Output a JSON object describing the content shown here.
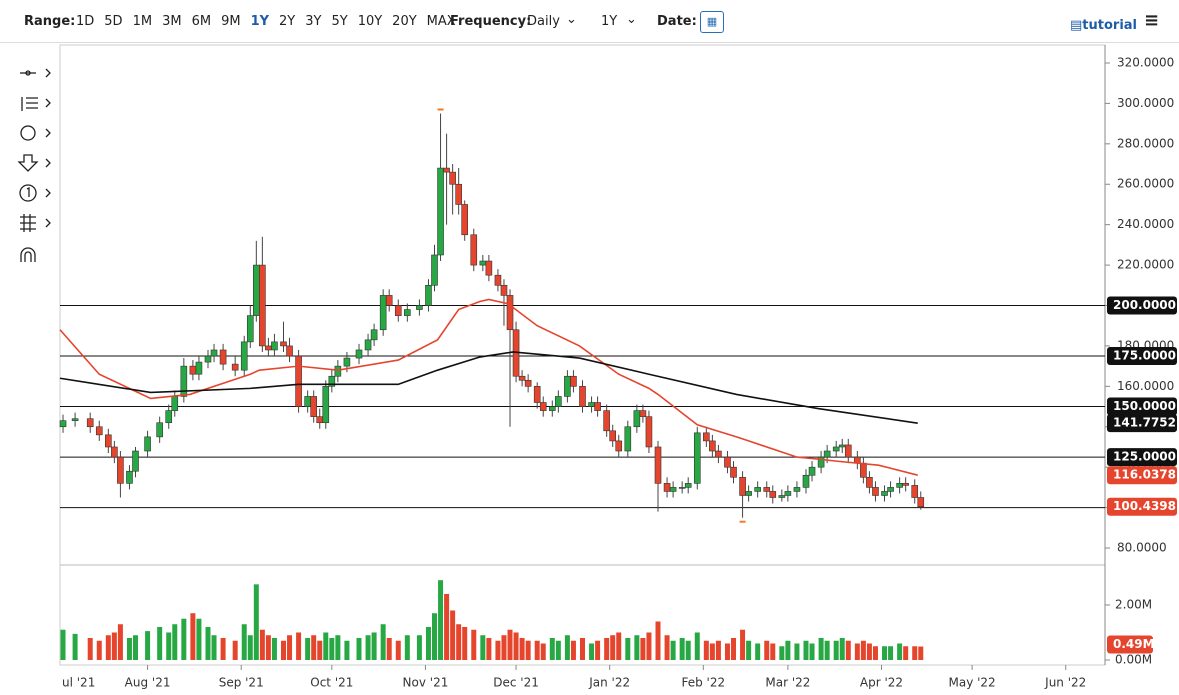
{
  "toolbar": {
    "range_label": "Range:",
    "ranges": [
      "1D",
      "5D",
      "1M",
      "3M",
      "6M",
      "9M",
      "1Y",
      "2Y",
      "3Y",
      "5Y",
      "10Y",
      "20Y",
      "MAX"
    ],
    "active_range": "1Y",
    "frequency_label": "Frequency:",
    "frequency": "Daily",
    "period": "1Y",
    "date_label": "Date:",
    "tutorial": "tutorial"
  },
  "chart_data": {
    "type": "candlestick",
    "xlim": [
      2,
      348
    ],
    "xticks": [
      {
        "value": 0,
        "label": "ul '21"
      },
      {
        "value": 31,
        "label": "Aug '21"
      },
      {
        "value": 62,
        "label": "Sep '21"
      },
      {
        "value": 92,
        "label": "Oct '21"
      },
      {
        "value": 123,
        "label": "Nov '21"
      },
      {
        "value": 153,
        "label": "Dec '21"
      },
      {
        "value": 184,
        "label": "Jan '22"
      },
      {
        "value": 215,
        "label": "Feb '22"
      },
      {
        "value": 243,
        "label": "Mar '22"
      },
      {
        "value": 274,
        "label": "Apr '22"
      },
      {
        "value": 304,
        "label": "May '22"
      },
      {
        "value": 335,
        "label": "Jun '22"
      }
    ],
    "ylim": [
      71.6,
      328.9
    ],
    "yticks": [
      {
        "value": 80,
        "label": "80.0000"
      },
      {
        "value": 100,
        "label": "100.0000"
      },
      {
        "value": 120,
        "label": "120.0000"
      },
      {
        "value": 140,
        "label": "140.0000"
      },
      {
        "value": 160,
        "label": "160.0000"
      },
      {
        "value": 180,
        "label": "180.0000"
      },
      {
        "value": 200,
        "label": "200.0000"
      },
      {
        "value": 220,
        "label": "220.0000"
      },
      {
        "value": 240,
        "label": "240.0000"
      },
      {
        "value": 260,
        "label": "260.0000"
      },
      {
        "value": 280,
        "label": "280.0000"
      },
      {
        "value": 300,
        "label": "300.0000"
      },
      {
        "value": 320,
        "label": "320.0000"
      }
    ],
    "levels": [
      {
        "value": 200,
        "label": "200.0000"
      },
      {
        "value": 175,
        "label": "175.0000"
      },
      {
        "value": 150,
        "label": "150.0000"
      },
      {
        "value": 125,
        "label": "125.0000"
      },
      {
        "value": 100,
        "label": "100.0000"
      }
    ],
    "up_color": "#27a844",
    "down_color": "#e5452d",
    "x": [
      3,
      7,
      12,
      15,
      18,
      20,
      22,
      25,
      27,
      31,
      35,
      38,
      40,
      43,
      46,
      48,
      51,
      53,
      56,
      60,
      63,
      65,
      67,
      69,
      71,
      73,
      76,
      78,
      81,
      84,
      86,
      88,
      90,
      92,
      94,
      97,
      101,
      104,
      106,
      109,
      111,
      114,
      117,
      121,
      124,
      126,
      128,
      130,
      132,
      134,
      136,
      139,
      142,
      144,
      147,
      149,
      151,
      153,
      155,
      157,
      160,
      162,
      165,
      167,
      170,
      172,
      175,
      178,
      180,
      183,
      185,
      187,
      190,
      193,
      195,
      197,
      200,
      203,
      205,
      208,
      210,
      213,
      216,
      218,
      220,
      223,
      225,
      228,
      230,
      233,
      236,
      238,
      241,
      243,
      246,
      249,
      251,
      254,
      256,
      259,
      261,
      263,
      266,
      268,
      270,
      272,
      275,
      277,
      280,
      282,
      285,
      287
    ],
    "open": [
      140,
      143,
      144,
      140,
      136,
      130,
      125,
      112,
      118,
      128,
      135,
      142,
      148,
      155,
      170,
      166,
      172,
      175,
      178,
      171,
      168,
      182,
      195,
      220,
      180,
      178,
      182,
      180,
      175,
      150,
      155,
      145,
      142,
      160,
      165,
      170,
      174,
      178,
      183,
      188,
      205,
      200,
      195,
      198,
      200,
      210,
      225,
      268,
      266,
      260,
      250,
      235,
      220,
      222,
      215,
      210,
      205,
      188,
      165,
      163,
      160,
      152,
      148,
      150,
      155,
      165,
      160,
      150,
      152,
      148,
      138,
      133,
      128,
      140,
      148,
      145,
      130,
      112,
      108,
      110,
      110,
      112,
      137,
      133,
      128,
      125,
      120,
      115,
      106,
      108,
      110,
      108,
      105,
      106,
      108,
      110,
      116,
      120,
      125,
      128,
      130,
      131,
      125,
      122,
      115,
      110,
      106,
      108,
      110,
      112,
      111,
      105
    ],
    "high": [
      146,
      147,
      147,
      143,
      139,
      133,
      128,
      121,
      130,
      138,
      145,
      151,
      158,
      174,
      173,
      175,
      178,
      181,
      181,
      175,
      185,
      200,
      232,
      234,
      184,
      186,
      192,
      184,
      178,
      158,
      158,
      149,
      163,
      168,
      173,
      177,
      181,
      186,
      191,
      208,
      208,
      203,
      201,
      203,
      213,
      230,
      295,
      285,
      270,
      268,
      252,
      238,
      225,
      225,
      218,
      213,
      208,
      192,
      168,
      166,
      162,
      155,
      153,
      158,
      168,
      168,
      163,
      155,
      155,
      151,
      141,
      136,
      143,
      151,
      151,
      148,
      133,
      115,
      113,
      113,
      115,
      140,
      140,
      136,
      131,
      128,
      123,
      118,
      111,
      113,
      113,
      111,
      109,
      111,
      113,
      119,
      123,
      128,
      131,
      133,
      134,
      134,
      128,
      125,
      118,
      113,
      111,
      113,
      115,
      115,
      114,
      108
    ],
    "low": [
      137,
      140,
      137,
      133,
      127,
      122,
      105,
      109,
      115,
      125,
      132,
      139,
      145,
      152,
      163,
      163,
      169,
      172,
      168,
      165,
      165,
      179,
      192,
      177,
      175,
      175,
      177,
      172,
      147,
      147,
      142,
      139,
      139,
      157,
      162,
      167,
      171,
      175,
      180,
      185,
      197,
      192,
      192,
      195,
      197,
      207,
      222,
      240,
      245,
      245,
      232,
      217,
      217,
      212,
      207,
      190,
      140,
      162,
      160,
      157,
      149,
      145,
      145,
      147,
      152,
      157,
      147,
      147,
      145,
      135,
      130,
      125,
      125,
      137,
      142,
      127,
      98,
      105,
      105,
      107,
      107,
      109,
      130,
      125,
      122,
      117,
      112,
      95,
      103,
      105,
      105,
      102,
      103,
      103,
      105,
      107,
      113,
      117,
      122,
      125,
      127,
      122,
      119,
      112,
      107,
      103,
      103,
      105,
      107,
      108,
      102,
      99
    ],
    "close": [
      143,
      144,
      140,
      136,
      130,
      125,
      112,
      118,
      128,
      135,
      142,
      148,
      155,
      170,
      166,
      172,
      175,
      178,
      171,
      168,
      182,
      195,
      220,
      180,
      178,
      182,
      180,
      175,
      150,
      155,
      145,
      142,
      160,
      165,
      170,
      174,
      178,
      183,
      188,
      205,
      200,
      195,
      198,
      200,
      210,
      225,
      268,
      266,
      260,
      250,
      235,
      220,
      222,
      215,
      210,
      205,
      188,
      165,
      163,
      160,
      152,
      148,
      150,
      155,
      165,
      160,
      150,
      152,
      148,
      138,
      133,
      128,
      140,
      148,
      145,
      130,
      112,
      108,
      110,
      110,
      112,
      137,
      133,
      128,
      125,
      120,
      115,
      106,
      108,
      110,
      108,
      105,
      106,
      108,
      110,
      116,
      120,
      125,
      128,
      130,
      131,
      125,
      122,
      115,
      110,
      106,
      108,
      110,
      112,
      111,
      105,
      100.4398
    ],
    "volume": [
      1100000,
      950000,
      800000,
      700000,
      900000,
      1000000,
      1300000,
      800000,
      900000,
      1050000,
      1200000,
      1000000,
      1300000,
      1500000,
      1700000,
      1500000,
      1200000,
      900000,
      800000,
      700000,
      1300000,
      900000,
      2750000,
      1100000,
      900000,
      800000,
      700000,
      900000,
      1000000,
      800000,
      900000,
      700000,
      1000000,
      800000,
      900000,
      700000,
      800000,
      900000,
      1000000,
      1300000,
      800000,
      700000,
      900000,
      900000,
      1200000,
      1700000,
      2900000,
      2400000,
      1800000,
      1300000,
      1200000,
      1100000,
      900000,
      800000,
      700000,
      900000,
      1100000,
      1000000,
      800000,
      700000,
      700000,
      600000,
      800000,
      700000,
      900000,
      700000,
      800000,
      600000,
      700000,
      800000,
      900000,
      1000000,
      800000,
      900000,
      800000,
      1000000,
      1400000,
      900000,
      700000,
      800000,
      700000,
      1000000,
      700000,
      600000,
      700000,
      600000,
      800000,
      1100000,
      700000,
      600000,
      700000,
      600000,
      500000,
      700000,
      600000,
      700000,
      600000,
      800000,
      700000,
      700000,
      800000,
      700000,
      600000,
      700000,
      600000,
      500000,
      500000,
      500000,
      600000,
      500000,
      500000,
      490000
    ],
    "volume_label": "0.49M",
    "vlim": [
      0,
      3380000
    ],
    "vticks": [
      {
        "value": 0,
        "label": "0.00M"
      },
      {
        "value": 2000000,
        "label": "2.00M"
      }
    ],
    "series": [
      {
        "color": "#e5452d",
        "x": [
          2,
          15,
          32,
          45,
          65,
          68,
          81,
          94,
          114,
          127,
          134,
          141,
          144,
          150,
          152,
          160,
          174,
          187,
          197,
          200,
          213,
          226,
          230,
          246,
          253,
          259,
          273,
          286
        ],
        "values": [
          188,
          166,
          154,
          156,
          166,
          168,
          170,
          168,
          173,
          183,
          198,
          202,
          203,
          201,
          199,
          190,
          180,
          166,
          159,
          156,
          141,
          135,
          133,
          125,
          124,
          123,
          121,
          116.0378
        ]
      },
      {
        "color": "#111111",
        "x": [
          2,
          32,
          65,
          81,
          114,
          127,
          141,
          152,
          174,
          197,
          226,
          253,
          286
        ],
        "values": [
          164,
          157,
          159,
          161,
          161,
          168,
          174.5,
          177,
          174,
          166,
          156,
          149,
          141.7752
        ]
      }
    ]
  }
}
